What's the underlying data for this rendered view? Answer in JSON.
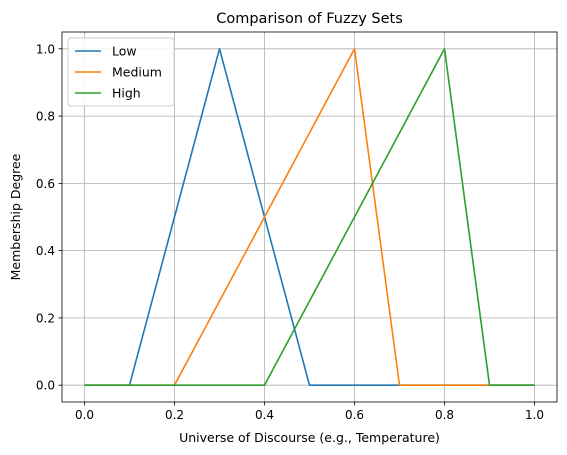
{
  "chart_data": {
    "type": "line",
    "title": "Comparison of Fuzzy Sets",
    "xlabel": "Universe of Discourse (e.g., Temperature)",
    "ylabel": "Membership Degree",
    "xlim": [
      -0.05,
      1.05
    ],
    "ylim": [
      -0.05,
      1.05
    ],
    "xticks": [
      0.0,
      0.2,
      0.4,
      0.6,
      0.8,
      1.0
    ],
    "xtick_labels": [
      "0.0",
      "0.2",
      "0.4",
      "0.6",
      "0.8",
      "1.0"
    ],
    "yticks": [
      0.0,
      0.2,
      0.4,
      0.6,
      0.8,
      1.0
    ],
    "ytick_labels": [
      "0.0",
      "0.2",
      "0.4",
      "0.6",
      "0.8",
      "1.0"
    ],
    "grid": true,
    "legend_position": "top-left",
    "series": [
      {
        "name": "Low",
        "color": "#1f77b4",
        "x": [
          0.0,
          0.1,
          0.3,
          0.5,
          0.7,
          0.9,
          1.0
        ],
        "y": [
          0.0,
          0.0,
          1.0,
          0.0,
          0.0,
          0.0,
          0.0
        ]
      },
      {
        "name": "Medium",
        "color": "#ff7f0e",
        "x": [
          0.0,
          0.2,
          0.6,
          0.7,
          0.9,
          1.0
        ],
        "y": [
          0.0,
          0.0,
          1.0,
          0.0,
          0.0,
          0.0
        ]
      },
      {
        "name": "High",
        "color": "#2ca02c",
        "x": [
          0.0,
          0.4,
          0.8,
          0.9,
          1.0
        ],
        "y": [
          0.0,
          0.0,
          1.0,
          0.0,
          0.0
        ]
      }
    ]
  }
}
